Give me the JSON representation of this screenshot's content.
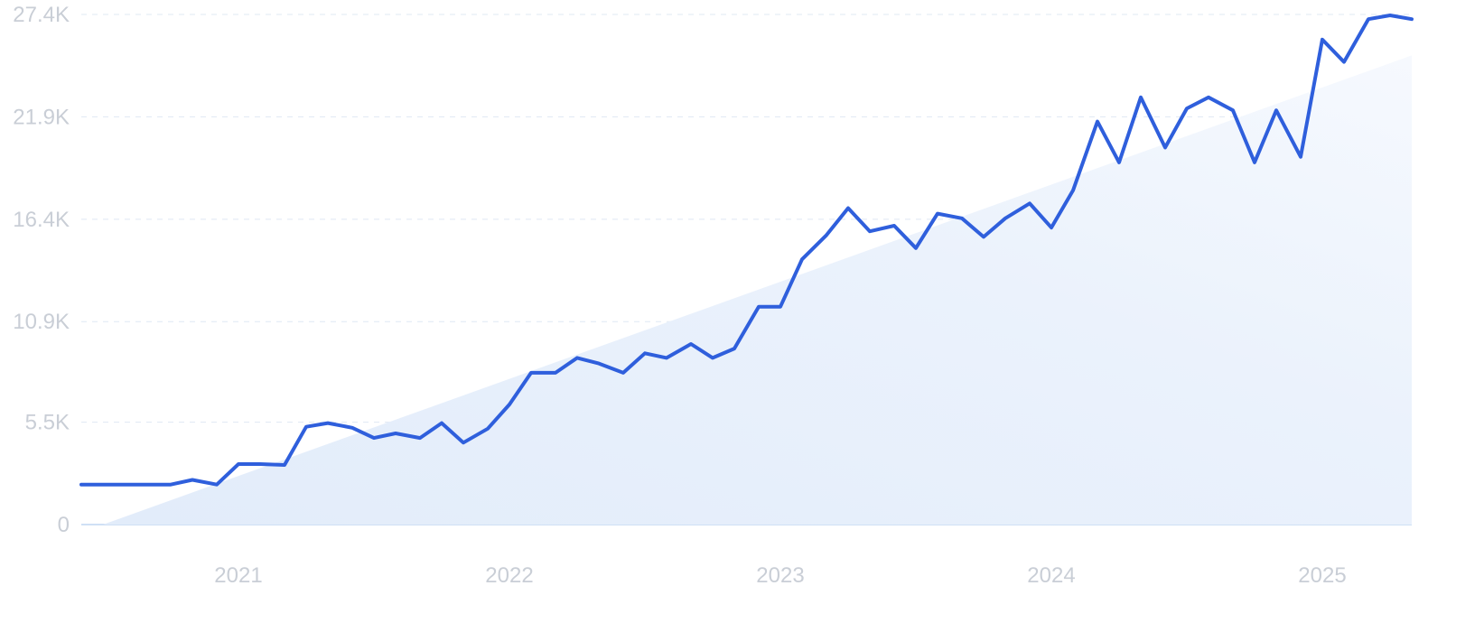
{
  "chart_data": {
    "type": "line",
    "title": "",
    "xlabel": "",
    "ylabel": "",
    "grid": true,
    "legend": "none",
    "y_ticks": [
      {
        "value": 0,
        "label": "0"
      },
      {
        "value": 5500,
        "label": "5.5K"
      },
      {
        "value": 10900,
        "label": "10.9K"
      },
      {
        "value": 16400,
        "label": "16.4K"
      },
      {
        "value": 21900,
        "label": "21.9K"
      },
      {
        "value": 27400,
        "label": "27.4K"
      }
    ],
    "x_ticks": [
      {
        "value": 2021,
        "label": "2021"
      },
      {
        "value": 2022,
        "label": "2022"
      },
      {
        "value": 2023,
        "label": "2023"
      },
      {
        "value": 2024,
        "label": "2024"
      },
      {
        "value": 2025,
        "label": "2025"
      }
    ],
    "xlim": [
      2020.42,
      2025.33
    ],
    "ylim": [
      0,
      27400
    ],
    "colors": {
      "line": "#2f5fdc",
      "trend_fill": "#e6effb",
      "grid": "#dfe8f3",
      "tick_text": "#c9ced6"
    },
    "series": [
      {
        "type": "line",
        "points": [
          [
            2020.42,
            2150
          ],
          [
            2020.5,
            2150
          ],
          [
            2020.58,
            2150
          ],
          [
            2020.67,
            2150
          ],
          [
            2020.75,
            2150
          ],
          [
            2020.83,
            2400
          ],
          [
            2020.92,
            2150
          ],
          [
            2021.0,
            3250
          ],
          [
            2021.08,
            3250
          ],
          [
            2021.17,
            3200
          ],
          [
            2021.25,
            5250
          ],
          [
            2021.33,
            5450
          ],
          [
            2021.42,
            5200
          ],
          [
            2021.5,
            4650
          ],
          [
            2021.58,
            4900
          ],
          [
            2021.67,
            4650
          ],
          [
            2021.75,
            5450
          ],
          [
            2021.83,
            4400
          ],
          [
            2021.92,
            5150
          ],
          [
            2022.0,
            6450
          ],
          [
            2022.08,
            8150
          ],
          [
            2022.17,
            8150
          ],
          [
            2022.25,
            8950
          ],
          [
            2022.33,
            8650
          ],
          [
            2022.42,
            8150
          ],
          [
            2022.5,
            9200
          ],
          [
            2022.58,
            8950
          ],
          [
            2022.67,
            9700
          ],
          [
            2022.75,
            8950
          ],
          [
            2022.83,
            9450
          ],
          [
            2022.92,
            11700
          ],
          [
            2023.0,
            11700
          ],
          [
            2023.08,
            14250
          ],
          [
            2023.17,
            15550
          ],
          [
            2023.25,
            17000
          ],
          [
            2023.33,
            15750
          ],
          [
            2023.42,
            16050
          ],
          [
            2023.5,
            14850
          ],
          [
            2023.58,
            16700
          ],
          [
            2023.67,
            16450
          ],
          [
            2023.75,
            15450
          ],
          [
            2023.83,
            16450
          ],
          [
            2023.92,
            17250
          ],
          [
            2024.0,
            15950
          ],
          [
            2024.08,
            17950
          ],
          [
            2024.17,
            21650
          ],
          [
            2024.25,
            19450
          ],
          [
            2024.33,
            22950
          ],
          [
            2024.42,
            20250
          ],
          [
            2024.5,
            22350
          ],
          [
            2024.58,
            22950
          ],
          [
            2024.67,
            22250
          ],
          [
            2024.75,
            19450
          ],
          [
            2024.83,
            22250
          ],
          [
            2024.92,
            19750
          ],
          [
            2025.0,
            26050
          ],
          [
            2025.08,
            24850
          ],
          [
            2025.17,
            27150
          ],
          [
            2025.25,
            27350
          ],
          [
            2025.33,
            27150
          ]
        ]
      },
      {
        "type": "area",
        "points": [
          [
            2020.5,
            0
          ],
          [
            2025.33,
            25200
          ]
        ]
      }
    ]
  }
}
